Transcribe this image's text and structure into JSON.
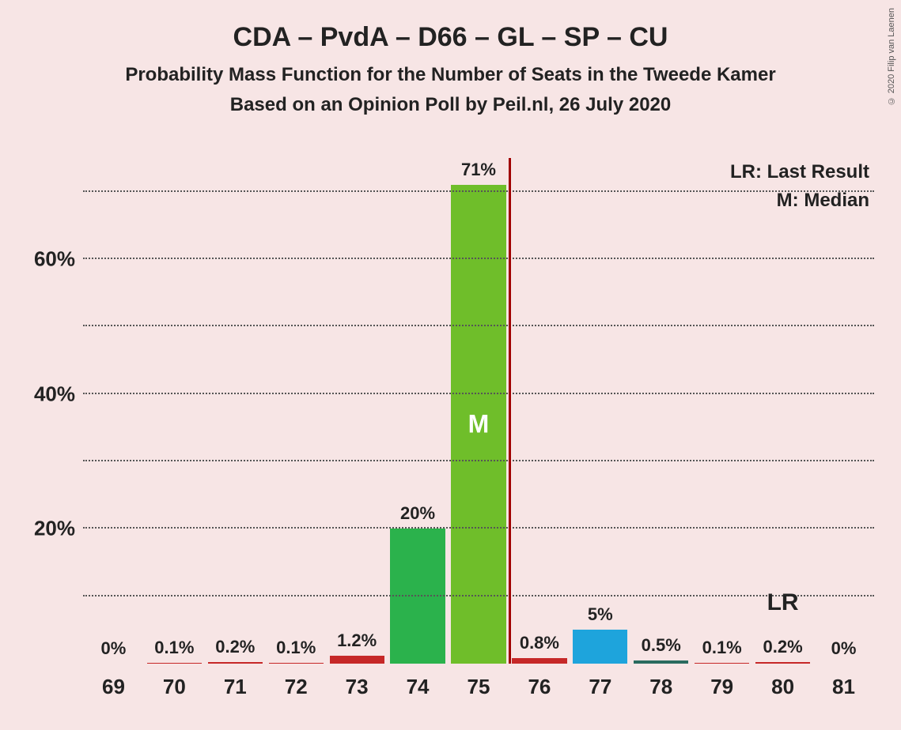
{
  "title": {
    "main": "CDA – PvdA – D66 – GL – SP – CU",
    "sub1": "Probability Mass Function for the Number of Seats in the Tweede Kamer",
    "sub2": "Based on an Opinion Poll by Peil.nl, 26 July 2020"
  },
  "copyright": "© 2020 Filip van Laenen",
  "chart": {
    "type": "bar",
    "background_color": "#f7e5e5",
    "grid_color": "#555555",
    "text_color": "#222222",
    "ylim_max": 75,
    "ytick_step": 10,
    "yticks": [
      10,
      20,
      30,
      40,
      50,
      60,
      70
    ],
    "ytick_labels": [
      "",
      "20%",
      "",
      "40%",
      "",
      "60%",
      ""
    ],
    "lr_line_color": "#a00000",
    "lr_position_after_index": 6,
    "legend_lr": "LR: Last Result",
    "legend_m": "M: Median",
    "median_label": "M",
    "lr_annot": "LR",
    "lr_annot_index": 11,
    "label_fontsize": 22,
    "axis_fontsize": 26,
    "bars": [
      {
        "x": "69",
        "value": 0,
        "label": "0%",
        "color": "#c62828"
      },
      {
        "x": "70",
        "value": 0.1,
        "label": "0.1%",
        "color": "#c62828"
      },
      {
        "x": "71",
        "value": 0.2,
        "label": "0.2%",
        "color": "#c62828"
      },
      {
        "x": "72",
        "value": 0.1,
        "label": "0.1%",
        "color": "#c62828"
      },
      {
        "x": "73",
        "value": 1.2,
        "label": "1.2%",
        "color": "#c62828"
      },
      {
        "x": "74",
        "value": 20,
        "label": "20%",
        "color": "#2bb24c"
      },
      {
        "x": "75",
        "value": 71,
        "label": "71%",
        "color": "#6fbe2a",
        "is_median": true
      },
      {
        "x": "76",
        "value": 0.8,
        "label": "0.8%",
        "color": "#c62828"
      },
      {
        "x": "77",
        "value": 5,
        "label": "5%",
        "color": "#1ea4dc"
      },
      {
        "x": "78",
        "value": 0.5,
        "label": "0.5%",
        "color": "#2a6b5f"
      },
      {
        "x": "79",
        "value": 0.1,
        "label": "0.1%",
        "color": "#c62828"
      },
      {
        "x": "80",
        "value": 0.2,
        "label": "0.2%",
        "color": "#c62828"
      },
      {
        "x": "81",
        "value": 0,
        "label": "0%",
        "color": "#c62828"
      }
    ]
  }
}
